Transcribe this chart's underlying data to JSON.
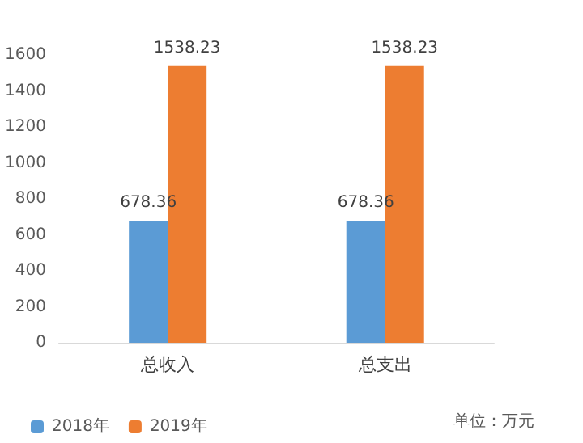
{
  "chart_data": {
    "type": "bar",
    "categories": [
      "总收入",
      "总支出"
    ],
    "series": [
      {
        "name": "2018年",
        "color": "#5b9bd5",
        "values": [
          678.36,
          678.36
        ]
      },
      {
        "name": "2019年",
        "color": "#ed7d31",
        "values": [
          1538.23,
          1538.23
        ]
      }
    ],
    "ylim": [
      0,
      1600
    ],
    "yticks": [
      0,
      200,
      400,
      600,
      800,
      1000,
      1200,
      1400,
      1600
    ],
    "data_labels": true,
    "legend": "bottom",
    "grid": false,
    "annotations": [
      "单位：万元"
    ]
  }
}
